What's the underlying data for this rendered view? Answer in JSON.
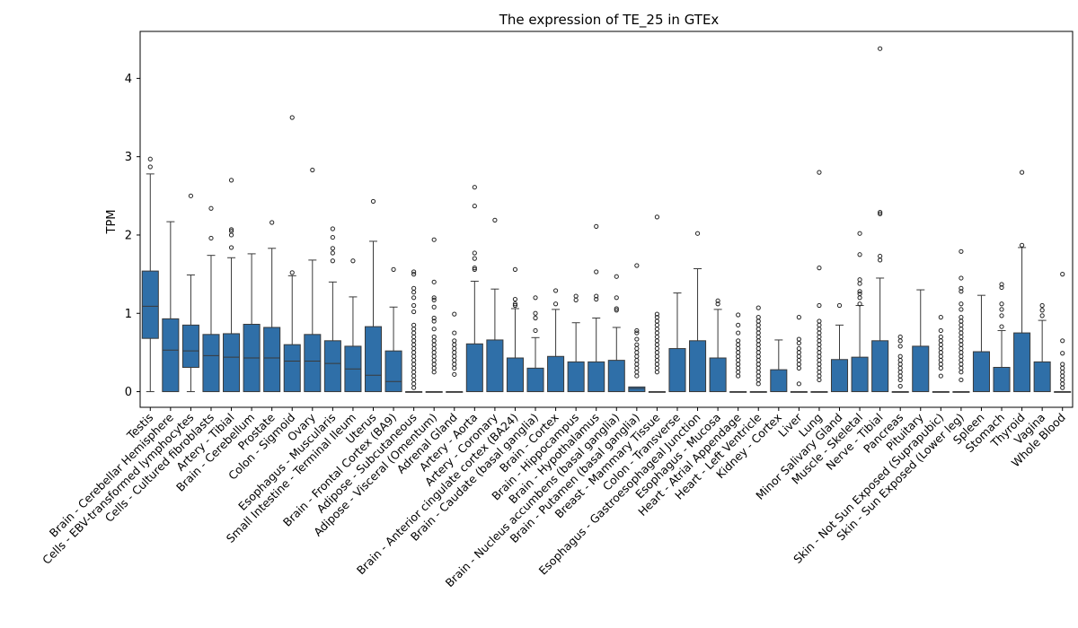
{
  "chart_data": {
    "type": "box",
    "title": "The expression of TE_25 in GTEx",
    "xlabel": "",
    "ylabel": "TPM",
    "ylim": [
      -0.2,
      4.6
    ],
    "yticks": [
      0,
      1,
      2,
      3,
      4
    ],
    "box_color": "#2f6fa8",
    "categories": [
      "Testis",
      "Brain - Cerebellar Hemisphere",
      "Cells - EBV-transformed lymphocytes",
      "Cells - Cultured fibroblasts",
      "Artery - Tibial",
      "Brain - Cerebellum",
      "Prostate",
      "Colon - Sigmoid",
      "Ovary",
      "Esophagus - Muscularis",
      "Small Intestine - Terminal Ileum",
      "Uterus",
      "Brain - Frontal Cortex (BA9)",
      "Adipose - Subcutaneous",
      "Adipose - Visceral (Omentum)",
      "Adrenal Gland",
      "Artery - Aorta",
      "Artery - Coronary",
      "Brain - Anterior cingulate cortex (BA24)",
      "Brain - Caudate (basal ganglia)",
      "Brain - Cortex",
      "Brain - Hippocampus",
      "Brain - Hypothalamus",
      "Brain - Nucleus accumbens (basal ganglia)",
      "Brain - Putamen (basal ganglia)",
      "Breast - Mammary Tissue",
      "Colon - Transverse",
      "Esophagus - Gastroesophageal Junction",
      "Esophagus - Mucosa",
      "Heart - Atrial Appendage",
      "Heart - Left Ventricle",
      "Kidney - Cortex",
      "Liver",
      "Lung",
      "Minor Salivary Gland",
      "Muscle - Skeletal",
      "Nerve - Tibial",
      "Pancreas",
      "Pituitary",
      "Skin - Not Sun Exposed (Suprapubic)",
      "Skin - Sun Exposed (Lower leg)",
      "Spleen",
      "Stomach",
      "Thyroid",
      "Vagina",
      "Whole Blood"
    ],
    "boxes": [
      {
        "q1": 0.68,
        "median": 1.09,
        "q3": 1.54,
        "whislo": 0,
        "whishi": 2.78,
        "fliers": [
          2.87,
          2.97
        ]
      },
      {
        "q1": 0,
        "median": 0.53,
        "q3": 0.93,
        "whislo": 0,
        "whishi": 2.17,
        "fliers": []
      },
      {
        "q1": 0.31,
        "median": 0.52,
        "q3": 0.85,
        "whislo": 0,
        "whishi": 1.49,
        "fliers": [
          2.5
        ]
      },
      {
        "q1": 0,
        "median": 0.46,
        "q3": 0.73,
        "whislo": 0,
        "whishi": 1.74,
        "fliers": [
          1.96,
          2.34
        ]
      },
      {
        "q1": 0,
        "median": 0.44,
        "q3": 0.74,
        "whislo": 0,
        "whishi": 1.71,
        "fliers": [
          1.84,
          2.0,
          2.05,
          2.07,
          2.7
        ]
      },
      {
        "q1": 0,
        "median": 0.43,
        "q3": 0.86,
        "whislo": 0,
        "whishi": 1.76,
        "fliers": []
      },
      {
        "q1": 0,
        "median": 0.43,
        "q3": 0.82,
        "whislo": 0,
        "whishi": 1.83,
        "fliers": [
          2.16
        ]
      },
      {
        "q1": 0,
        "median": 0.39,
        "q3": 0.6,
        "whislo": 0,
        "whishi": 1.48,
        "fliers": [
          1.52,
          3.5
        ]
      },
      {
        "q1": 0,
        "median": 0.39,
        "q3": 0.73,
        "whislo": 0,
        "whishi": 1.68,
        "fliers": [
          2.83
        ]
      },
      {
        "q1": 0,
        "median": 0.36,
        "q3": 0.65,
        "whislo": 0,
        "whishi": 1.4,
        "fliers": [
          1.67,
          1.77,
          1.83,
          1.97,
          2.08
        ]
      },
      {
        "q1": 0,
        "median": 0.29,
        "q3": 0.58,
        "whislo": 0,
        "whishi": 1.21,
        "fliers": [
          1.67
        ]
      },
      {
        "q1": 0,
        "median": 0.21,
        "q3": 0.83,
        "whislo": 0,
        "whishi": 1.92,
        "fliers": [
          2.43
        ]
      },
      {
        "q1": 0,
        "median": 0.13,
        "q3": 0.52,
        "whislo": 0,
        "whishi": 1.08,
        "fliers": [
          1.56
        ]
      },
      {
        "q1": 0,
        "median": 0,
        "q3": 0,
        "whislo": 0,
        "whishi": 0,
        "fliers": [
          0.05,
          0.1,
          0.15,
          0.2,
          0.25,
          0.3,
          0.35,
          0.4,
          0.45,
          0.5,
          0.55,
          0.6,
          0.65,
          0.7,
          0.75,
          0.8,
          0.85,
          1.02,
          1.1,
          1.2,
          1.27,
          1.32,
          1.5,
          1.53
        ]
      },
      {
        "q1": 0,
        "median": 0,
        "q3": 0,
        "whislo": 0,
        "whishi": 0,
        "fliers": [
          0.25,
          0.3,
          0.35,
          0.4,
          0.45,
          0.5,
          0.55,
          0.6,
          0.65,
          0.7,
          0.8,
          0.9,
          0.94,
          1.08,
          1.17,
          1.2,
          1.4,
          1.94
        ]
      },
      {
        "q1": 0,
        "median": 0,
        "q3": 0,
        "whislo": 0,
        "whishi": 0,
        "fliers": [
          0.22,
          0.3,
          0.35,
          0.4,
          0.45,
          0.5,
          0.55,
          0.6,
          0.65,
          0.75,
          0.99
        ]
      },
      {
        "q1": 0,
        "median": 0,
        "q3": 0.61,
        "whislo": 0,
        "whishi": 1.41,
        "fliers": [
          1.56,
          1.58,
          1.7,
          1.77,
          2.37,
          2.61
        ]
      },
      {
        "q1": 0,
        "median": 0,
        "q3": 0.66,
        "whislo": 0,
        "whishi": 1.31,
        "fliers": [
          2.19
        ]
      },
      {
        "q1": 0,
        "median": 0,
        "q3": 0.43,
        "whislo": 0,
        "whishi": 1.06,
        "fliers": [
          1.1,
          1.12,
          1.18,
          1.56
        ]
      },
      {
        "q1": 0,
        "median": 0,
        "q3": 0.3,
        "whislo": 0,
        "whishi": 0.69,
        "fliers": [
          0.78,
          0.94,
          1.0,
          1.2
        ]
      },
      {
        "q1": 0,
        "median": 0,
        "q3": 0.45,
        "whislo": 0,
        "whishi": 1.05,
        "fliers": [
          1.12,
          1.29
        ]
      },
      {
        "q1": 0,
        "median": 0,
        "q3": 0.38,
        "whislo": 0,
        "whishi": 0.88,
        "fliers": [
          1.17,
          1.22
        ]
      },
      {
        "q1": 0,
        "median": 0,
        "q3": 0.38,
        "whislo": 0,
        "whishi": 0.94,
        "fliers": [
          1.18,
          1.22,
          1.53,
          2.11
        ]
      },
      {
        "q1": 0,
        "median": 0,
        "q3": 0.4,
        "whislo": 0,
        "whishi": 0.82,
        "fliers": [
          1.04,
          1.06,
          1.2,
          1.47
        ]
      },
      {
        "q1": 0,
        "median": 0.04,
        "q3": 0.06,
        "whislo": 0,
        "whishi": 0.06,
        "fliers": [
          0.2,
          0.25,
          0.3,
          0.35,
          0.4,
          0.45,
          0.5,
          0.55,
          0.6,
          0.67,
          0.75,
          0.78,
          1.61
        ]
      },
      {
        "q1": 0,
        "median": 0,
        "q3": 0,
        "whislo": 0,
        "whishi": 0,
        "fliers": [
          0.25,
          0.3,
          0.35,
          0.4,
          0.45,
          0.5,
          0.55,
          0.6,
          0.65,
          0.7,
          0.75,
          0.8,
          0.85,
          0.9,
          0.95,
          0.99,
          2.23
        ]
      },
      {
        "q1": 0,
        "median": 0,
        "q3": 0.55,
        "whislo": 0,
        "whishi": 1.26,
        "fliers": []
      },
      {
        "q1": 0,
        "median": 0,
        "q3": 0.65,
        "whislo": 0,
        "whishi": 1.57,
        "fliers": [
          2.02
        ]
      },
      {
        "q1": 0,
        "median": 0,
        "q3": 0.43,
        "whislo": 0,
        "whishi": 1.05,
        "fliers": [
          1.12,
          1.16
        ]
      },
      {
        "q1": 0,
        "median": 0,
        "q3": 0,
        "whislo": 0,
        "whishi": 0,
        "fliers": [
          0.2,
          0.25,
          0.3,
          0.35,
          0.4,
          0.45,
          0.5,
          0.55,
          0.6,
          0.65,
          0.75,
          0.85,
          0.98
        ]
      },
      {
        "q1": 0,
        "median": 0,
        "q3": 0,
        "whislo": 0,
        "whishi": 0,
        "fliers": [
          0.1,
          0.15,
          0.2,
          0.25,
          0.3,
          0.35,
          0.4,
          0.45,
          0.5,
          0.55,
          0.6,
          0.65,
          0.7,
          0.75,
          0.8,
          0.85,
          0.9,
          0.95,
          1.07
        ]
      },
      {
        "q1": 0,
        "median": 0,
        "q3": 0.28,
        "whislo": 0,
        "whishi": 0.66,
        "fliers": []
      },
      {
        "q1": 0,
        "median": 0,
        "q3": 0,
        "whislo": 0,
        "whishi": 0,
        "fliers": [
          0.1,
          0.3,
          0.35,
          0.4,
          0.45,
          0.5,
          0.55,
          0.62,
          0.67,
          0.95
        ]
      },
      {
        "q1": 0,
        "median": 0,
        "q3": 0,
        "whislo": 0,
        "whishi": 0,
        "fliers": [
          0.15,
          0.2,
          0.25,
          0.3,
          0.35,
          0.4,
          0.45,
          0.5,
          0.55,
          0.6,
          0.65,
          0.7,
          0.75,
          0.8,
          0.85,
          0.9,
          1.1,
          1.58,
          2.8
        ]
      },
      {
        "q1": 0,
        "median": 0,
        "q3": 0.41,
        "whislo": 0,
        "whishi": 0.85,
        "fliers": [
          1.1
        ]
      },
      {
        "q1": 0,
        "median": 0,
        "q3": 0.44,
        "whislo": 0,
        "whishi": 1.1,
        "fliers": [
          1.12,
          1.2,
          1.25,
          1.28,
          1.38,
          1.43,
          1.75,
          2.02
        ]
      },
      {
        "q1": 0,
        "median": 0,
        "q3": 0.65,
        "whislo": 0,
        "whishi": 1.45,
        "fliers": [
          1.68,
          1.73,
          2.27,
          2.29,
          4.38
        ]
      },
      {
        "q1": 0,
        "median": 0,
        "q3": 0,
        "whislo": 0,
        "whishi": 0,
        "fliers": [
          0.07,
          0.15,
          0.2,
          0.25,
          0.3,
          0.35,
          0.4,
          0.45,
          0.58,
          0.65,
          0.7
        ]
      },
      {
        "q1": 0,
        "median": 0,
        "q3": 0.58,
        "whislo": 0,
        "whishi": 1.3,
        "fliers": []
      },
      {
        "q1": 0,
        "median": 0,
        "q3": 0,
        "whislo": 0,
        "whishi": 0,
        "fliers": [
          0.2,
          0.3,
          0.35,
          0.4,
          0.45,
          0.5,
          0.55,
          0.6,
          0.65,
          0.7,
          0.78,
          0.95
        ]
      },
      {
        "q1": 0,
        "median": 0,
        "q3": 0,
        "whislo": 0,
        "whishi": 0,
        "fliers": [
          0.15,
          0.25,
          0.3,
          0.35,
          0.4,
          0.45,
          0.5,
          0.55,
          0.6,
          0.65,
          0.7,
          0.75,
          0.8,
          0.85,
          0.9,
          0.95,
          1.05,
          1.12,
          1.28,
          1.32,
          1.45,
          1.79
        ]
      },
      {
        "q1": 0,
        "median": 0,
        "q3": 0.51,
        "whislo": 0,
        "whishi": 1.23,
        "fliers": []
      },
      {
        "q1": 0,
        "median": 0,
        "q3": 0.31,
        "whislo": 0,
        "whishi": 0.78,
        "fliers": [
          0.83,
          0.97,
          1.05,
          1.12,
          1.33,
          1.37
        ]
      },
      {
        "q1": 0,
        "median": 0,
        "q3": 0.75,
        "whislo": 0,
        "whishi": 1.84,
        "fliers": [
          1.87,
          2.8
        ]
      },
      {
        "q1": 0,
        "median": 0,
        "q3": 0.38,
        "whislo": 0,
        "whishi": 0.91,
        "fliers": [
          0.97,
          1.04,
          1.1
        ]
      },
      {
        "q1": 0,
        "median": 0,
        "q3": 0,
        "whislo": 0,
        "whishi": 0,
        "fliers": [
          0.05,
          0.1,
          0.15,
          0.2,
          0.25,
          0.3,
          0.35,
          0.49,
          0.65,
          1.5
        ]
      }
    ]
  }
}
